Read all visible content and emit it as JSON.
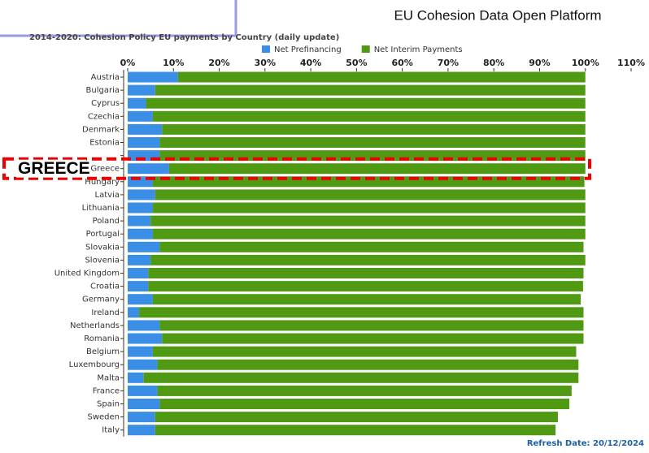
{
  "platform": "EU Cohesion Data Open Platform",
  "annotation": "GREECE",
  "refresh": "Refresh Date: 20/12/2024",
  "chart_data": {
    "type": "stacked-barh",
    "title": "2014-2020: Cohesion Policy EU payments by Country (daily update)",
    "categories": [
      "Austria",
      "Bulgaria",
      "Cyprus",
      "Czechia",
      "Denmark",
      "Estonia",
      null,
      "Greece",
      "Hungary",
      "Latvia",
      "Lithuania",
      "Poland",
      "Portugal",
      "Slovakia",
      "Slovenia",
      "United Kingdom",
      "Croatia",
      "Germany",
      "Ireland",
      "Netherlands",
      "Romania",
      "Belgium",
      "Luxembourg",
      "Malta",
      "France",
      "Spain",
      "Sweden",
      "Italy"
    ],
    "series": [
      {
        "name": "Net Prefinancing",
        "color": "#3a8ee6",
        "values": [
          11,
          6,
          4,
          5.5,
          7.5,
          7,
          7,
          9,
          5.5,
          6,
          5.5,
          5,
          5.5,
          7,
          5,
          4.5,
          4.5,
          5.5,
          2.5,
          7,
          7.5,
          5.5,
          6.5,
          3.5,
          6.5,
          7,
          6,
          6
        ]
      },
      {
        "name": "Net Interim Payments",
        "color": "#4f9a12",
        "values": [
          89,
          94,
          96,
          94.5,
          92.5,
          93,
          93,
          91,
          94.3,
          94,
          94.5,
          95,
          94.5,
          92.6,
          95,
          95.1,
          95,
          93.5,
          97.1,
          92.6,
          92.1,
          92.5,
          92,
          95,
          90.5,
          89.5,
          88,
          87.5
        ]
      }
    ],
    "xlim": [
      0,
      110
    ],
    "xticks": [
      {
        "value": 0,
        "label": "0%"
      },
      {
        "value": 10,
        "label": "10%"
      },
      {
        "value": 20,
        "label": "20%"
      },
      {
        "value": 30,
        "label": "30%"
      },
      {
        "value": 40,
        "label": "40%"
      },
      {
        "value": 50,
        "label": "50%"
      },
      {
        "value": 60,
        "label": "60%"
      },
      {
        "value": 70,
        "label": "70%"
      },
      {
        "value": 80,
        "label": "80%"
      },
      {
        "value": 90,
        "label": "90%"
      },
      {
        "value": 100,
        "label": "100%"
      },
      {
        "value": 110,
        "label": "110%"
      }
    ],
    "legend": "top"
  }
}
